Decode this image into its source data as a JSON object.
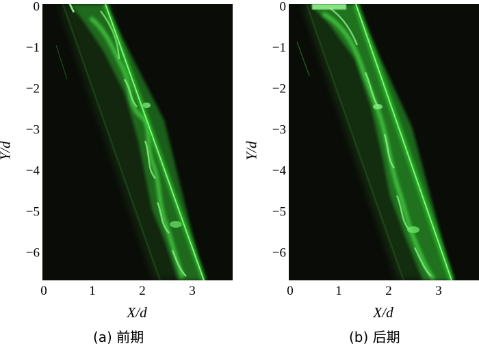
{
  "panels": [
    {
      "caption": "(a) 前期",
      "xlabel": "X/d",
      "ylabel": "Y/d",
      "xticks": [
        "0",
        "1",
        "2",
        "3"
      ],
      "yticks": [
        "0",
        "−1",
        "−2",
        "−3",
        "−4",
        "−5",
        "−6"
      ]
    },
    {
      "caption": "(b) 后期",
      "xlabel": "X/d",
      "ylabel": "Y/d",
      "xticks": [
        "0",
        "1",
        "2",
        "3"
      ],
      "yticks": [
        "0",
        "−1",
        "−2",
        "−3",
        "−4",
        "−5",
        "−6"
      ]
    }
  ],
  "colors": {
    "background": "#0a0c08",
    "fluorescence": "#3fd13f"
  }
}
